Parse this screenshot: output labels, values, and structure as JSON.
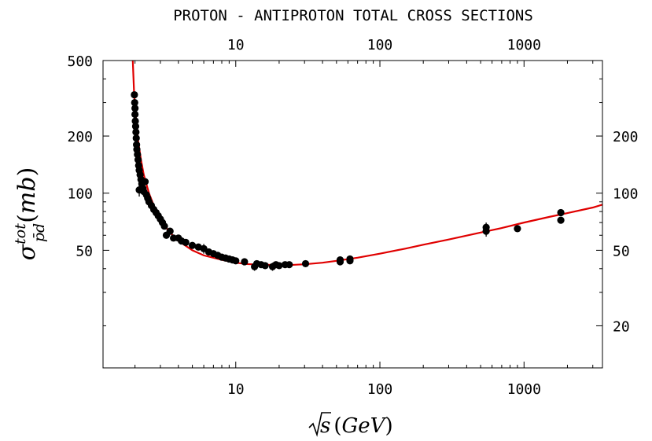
{
  "chart_data": {
    "type": "scatter",
    "title": "PROTON - ANTIPROTON TOTAL CROSS SECTIONS",
    "xlabel": {
      "radicand": "s",
      "unit": "GeV"
    },
    "ylabel": {
      "symbol": "σ",
      "superscript": "tot",
      "subscript": "p̄d",
      "unit": "mb"
    },
    "x_scale": "log",
    "y_scale": "log",
    "xlim": [
      1.2,
      3500
    ],
    "ylim": [
      12,
      500
    ],
    "x_ticks": [
      10,
      100,
      1000
    ],
    "x_tick_labels": [
      "10",
      "100",
      "1000"
    ],
    "top_ticks": [
      10,
      100,
      1000
    ],
    "top_tick_labels": [
      "10",
      "100",
      "1000"
    ],
    "y_ticks_left": [
      50,
      100,
      200,
      500
    ],
    "y_tick_labels_left": [
      "50",
      "100",
      "200",
      "500"
    ],
    "y_ticks_right": [
      20,
      50,
      100,
      200
    ],
    "y_tick_labels_right": [
      "20",
      "50",
      "100",
      "200"
    ],
    "grid": false,
    "fit_color": "#e00000",
    "point_color": "#000000",
    "fit_curve": {
      "x": [
        1.93,
        1.97,
        2.0,
        2.05,
        2.1,
        2.2,
        2.3,
        2.5,
        2.7,
        3.0,
        3.5,
        4.0,
        5.0,
        6.0,
        8.0,
        10,
        12,
        15,
        20,
        25,
        30,
        40,
        50,
        70,
        100,
        150,
        200,
        300,
        500,
        700,
        1000,
        1500,
        2000,
        3000,
        3500
      ],
      "y": [
        500,
        340,
        285,
        230,
        190,
        150,
        125,
        100,
        86,
        72,
        62,
        56,
        50,
        47,
        44.5,
        43,
        42.3,
        42,
        41.8,
        41.9,
        42.2,
        43,
        44,
        45.7,
        48,
        51,
        53.5,
        57,
        62,
        65.5,
        70,
        75,
        78.5,
        84,
        87
      ]
    },
    "points": [
      {
        "x": 1.98,
        "y": 330
      },
      {
        "x": 1.99,
        "y": 300
      },
      {
        "x": 2.0,
        "y": 280
      },
      {
        "x": 2.0,
        "y": 260
      },
      {
        "x": 2.01,
        "y": 240
      },
      {
        "x": 2.02,
        "y": 225
      },
      {
        "x": 2.03,
        "y": 210
      },
      {
        "x": 2.04,
        "y": 195
      },
      {
        "x": 2.05,
        "y": 180
      },
      {
        "x": 2.06,
        "y": 170
      },
      {
        "x": 2.08,
        "y": 160
      },
      {
        "x": 2.1,
        "y": 150
      },
      {
        "x": 2.12,
        "y": 140
      },
      {
        "x": 2.14,
        "y": 132
      },
      {
        "x": 2.17,
        "y": 125
      },
      {
        "x": 2.2,
        "y": 118
      },
      {
        "x": 2.23,
        "y": 112
      },
      {
        "x": 2.14,
        "y": 104,
        "err": 8
      },
      {
        "x": 2.27,
        "y": 106
      },
      {
        "x": 2.3,
        "y": 102
      },
      {
        "x": 2.35,
        "y": 115
      },
      {
        "x": 2.4,
        "y": 98
      },
      {
        "x": 2.45,
        "y": 94
      },
      {
        "x": 2.5,
        "y": 90
      },
      {
        "x": 2.6,
        "y": 86
      },
      {
        "x": 2.7,
        "y": 82
      },
      {
        "x": 2.8,
        "y": 79
      },
      {
        "x": 2.9,
        "y": 76
      },
      {
        "x": 3.0,
        "y": 73
      },
      {
        "x": 3.1,
        "y": 70
      },
      {
        "x": 3.2,
        "y": 67
      },
      {
        "x": 3.3,
        "y": 60
      },
      {
        "x": 3.5,
        "y": 63
      },
      {
        "x": 3.7,
        "y": 58
      },
      {
        "x": 4.0,
        "y": 58
      },
      {
        "x": 4.2,
        "y": 56
      },
      {
        "x": 4.5,
        "y": 55
      },
      {
        "x": 5.0,
        "y": 53
      },
      {
        "x": 5.5,
        "y": 52
      },
      {
        "x": 6.0,
        "y": 51,
        "err": 3
      },
      {
        "x": 6.5,
        "y": 49
      },
      {
        "x": 7.0,
        "y": 48
      },
      {
        "x": 7.5,
        "y": 47
      },
      {
        "x": 8.0,
        "y": 46
      },
      {
        "x": 8.5,
        "y": 45.5
      },
      {
        "x": 9.0,
        "y": 45
      },
      {
        "x": 9.5,
        "y": 44.5
      },
      {
        "x": 10.0,
        "y": 44
      },
      {
        "x": 11.5,
        "y": 43.5
      },
      {
        "x": 13.5,
        "y": 41,
        "err": 2
      },
      {
        "x": 14.0,
        "y": 42.5
      },
      {
        "x": 15.0,
        "y": 42
      },
      {
        "x": 16.0,
        "y": 41.5
      },
      {
        "x": 18.0,
        "y": 41,
        "err": 2
      },
      {
        "x": 19.0,
        "y": 42
      },
      {
        "x": 20.0,
        "y": 41.5
      },
      {
        "x": 22.0,
        "y": 42
      },
      {
        "x": 23.5,
        "y": 42
      },
      {
        "x": 30.5,
        "y": 42.5
      },
      {
        "x": 53,
        "y": 43.5
      },
      {
        "x": 53,
        "y": 44.5
      },
      {
        "x": 62,
        "y": 44
      },
      {
        "x": 62,
        "y": 45
      },
      {
        "x": 546,
        "y": 63,
        "err": 4
      },
      {
        "x": 546,
        "y": 66,
        "err": 4
      },
      {
        "x": 900,
        "y": 65
      },
      {
        "x": 1800,
        "y": 72
      },
      {
        "x": 1800,
        "y": 79
      }
    ]
  }
}
